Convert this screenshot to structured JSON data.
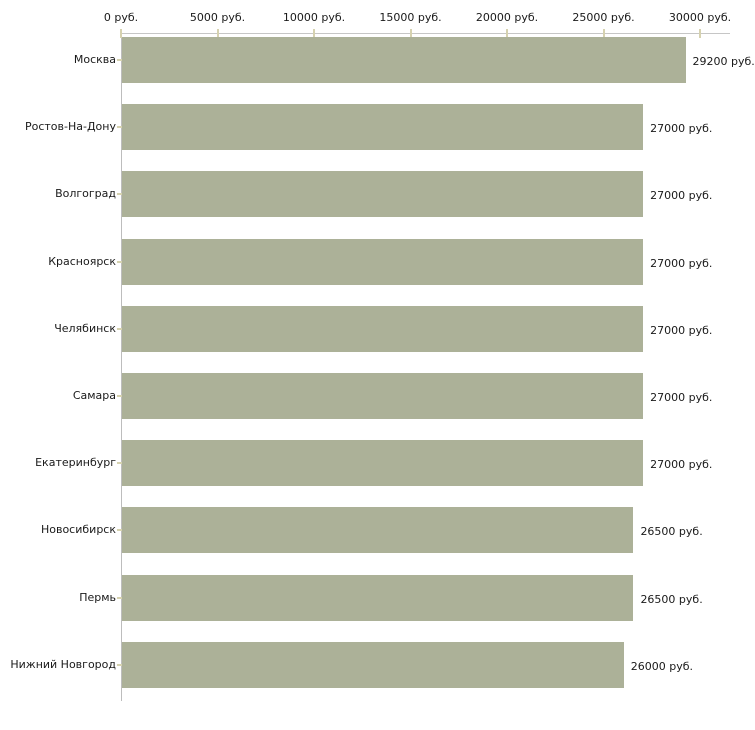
{
  "chart_data": {
    "type": "bar",
    "orientation": "horizontal",
    "title": "",
    "xlabel": "",
    "ylabel": "",
    "unit": "руб.",
    "xlim": [
      0,
      30000
    ],
    "grid": false,
    "legend": false,
    "categories": [
      "Москва",
      "Ростов-На-Дону",
      "Волгоград",
      "Красноярск",
      "Челябинск",
      "Самара",
      "Екатеринбург",
      "Новосибирск",
      "Пермь",
      "Нижний Новгород"
    ],
    "values": [
      29200,
      27000,
      27000,
      27000,
      27000,
      27000,
      27000,
      26500,
      26500,
      26000
    ],
    "value_labels": [
      "29200 руб.",
      "27000 руб.",
      "27000 руб.",
      "27000 руб.",
      "27000 руб.",
      "27000 руб.",
      "27000 руб.",
      "26500 руб.",
      "26500 руб.",
      "26000 руб."
    ],
    "x_ticks": [
      {
        "value": 0,
        "label": "0 руб."
      },
      {
        "value": 5000,
        "label": "5000 руб."
      },
      {
        "value": 10000,
        "label": "10000 руб."
      },
      {
        "value": 15000,
        "label": "15000 руб."
      },
      {
        "value": 20000,
        "label": "20000 руб."
      },
      {
        "value": 25000,
        "label": "25000 руб."
      },
      {
        "value": 30000,
        "label": "30000 руб."
      }
    ],
    "colors": {
      "bar": "#acb198",
      "axis_line": "#c6c6c6",
      "tick_mark": "#d6d2b0",
      "text": "#1a1a1a",
      "background": "#ffffff"
    }
  }
}
